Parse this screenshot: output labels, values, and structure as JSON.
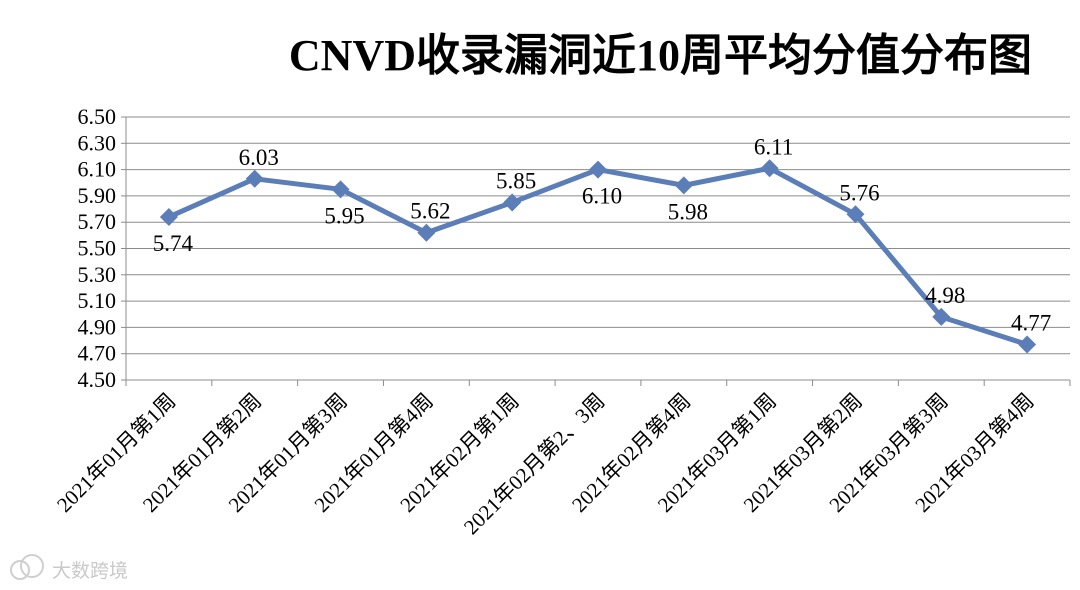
{
  "chart_data": {
    "type": "line",
    "title": "CNVD收录漏洞近10周平均分值分布图",
    "categories": [
      "2021年01月第1周",
      "2021年01月第2周",
      "2021年01月第3周",
      "2021年01月第4周",
      "2021年02月第1周",
      "2021年02月第2、3周",
      "2021年02月第4周",
      "2021年03月第1周",
      "2021年03月第2周",
      "2021年03月第3周",
      "2021年03月第4周"
    ],
    "values": [
      5.74,
      6.03,
      5.95,
      5.62,
      5.85,
      6.1,
      5.98,
      6.11,
      5.76,
      4.98,
      4.77
    ],
    "data_labels": [
      "5.74",
      "6.03",
      "5.95",
      "5.62",
      "5.85",
      "6.10",
      "5.98",
      "6.11",
      "5.76",
      "4.98",
      "4.77"
    ],
    "ylim": [
      4.5,
      6.5
    ],
    "ytick_labels": [
      "4.50",
      "4.70",
      "4.90",
      "5.10",
      "5.30",
      "5.50",
      "5.70",
      "5.90",
      "6.10",
      "6.30",
      "6.50"
    ],
    "grid": true,
    "legend": "none",
    "line_color": "#5b7db8",
    "marker": "diamond"
  },
  "watermark": {
    "text": "大数跨境",
    "icon": "chat-bubble-logo-icon"
  }
}
